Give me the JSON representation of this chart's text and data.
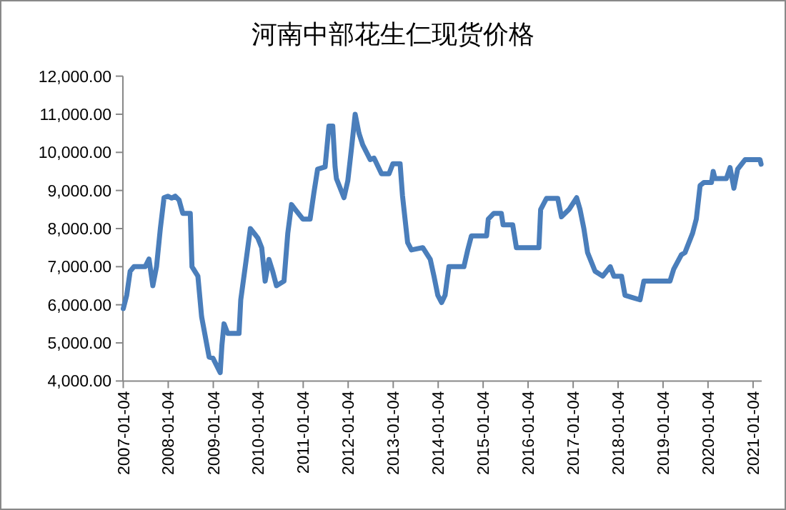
{
  "chart_data": {
    "type": "line",
    "title": "河南中部花生仁现货价格",
    "x": [
      "2007-01-04",
      "2007-02",
      "2007-03",
      "2007-04",
      "2007-07",
      "2007-08",
      "2007-09",
      "2007-10",
      "2007-11",
      "2007-12",
      "2008-01",
      "2008-02",
      "2008-03",
      "2008-04",
      "2008-05",
      "2008-07",
      "2008-07-15",
      "2008-09",
      "2008-10",
      "2008-12",
      "2009-01",
      "2009-03",
      "2009-03-15",
      "2009-04",
      "2009-05",
      "2009-08",
      "2009-08-15",
      "2009-10",
      "2009-11",
      "2009-12",
      "2010-01",
      "2010-02",
      "2010-03",
      "2010-04",
      "2010-05",
      "2010-06",
      "2010-08",
      "2010-09",
      "2010-10",
      "2010-11",
      "2011-01",
      "2011-03",
      "2011-04",
      "2011-05",
      "2011-07",
      "2011-08",
      "2011-09",
      "2011-09-20",
      "2011-10",
      "2011-12",
      "2012-01",
      "2012-02",
      "2012-03",
      "2012-04",
      "2012-05",
      "2012-07",
      "2012-08",
      "2012-10",
      "2012-12",
      "2013-01",
      "2013-03",
      "2013-03-20",
      "2013-05",
      "2013-06",
      "2013-09",
      "2013-11",
      "2013-12",
      "2014-01",
      "2014-02",
      "2014-03",
      "2014-04",
      "2014-08",
      "2014-09",
      "2014-10",
      "2015-02",
      "2015-02-15",
      "2015-04",
      "2015-06",
      "2015-06-15",
      "2015-09",
      "2015-10",
      "2016-04",
      "2016-04-15",
      "2016-06",
      "2016-09",
      "2016-10",
      "2016-12",
      "2017-02",
      "2017-03",
      "2017-04",
      "2017-05",
      "2017-07",
      "2017-09",
      "2017-11",
      "2017-12",
      "2018-02",
      "2018-03",
      "2018-05",
      "2018-07",
      "2018-08",
      "2019-03",
      "2019-04",
      "2019-06",
      "2019-07",
      "2019-09",
      "2019-10",
      "2019-11",
      "2019-12",
      "2020-02",
      "2020-02-15",
      "2020-03",
      "2020-06",
      "2020-07",
      "2020-08",
      "2020-09",
      "2020-11",
      "2021-03",
      "2021-03-10"
    ],
    "series": [
      {
        "color": "#4a7ebb",
        "values": [
          5900,
          6250,
          6880,
          7000,
          7000,
          7200,
          6500,
          7000,
          8000,
          8810,
          8850,
          8800,
          8850,
          8750,
          8400,
          8400,
          7000,
          6750,
          5690,
          4630,
          4600,
          4220,
          4940,
          5500,
          5250,
          5250,
          6130,
          7250,
          8000,
          7880,
          7750,
          7500,
          6620,
          7190,
          6880,
          6500,
          6620,
          7880,
          8630,
          8500,
          8250,
          8250,
          8940,
          9560,
          9620,
          10690,
          10690,
          9620,
          9310,
          8810,
          9250,
          10130,
          11000,
          10500,
          10200,
          9810,
          9850,
          9440,
          9440,
          9700,
          9700,
          8870,
          7630,
          7440,
          7500,
          7190,
          6750,
          6250,
          6060,
          6250,
          7000,
          7000,
          7440,
          7810,
          7810,
          8250,
          8400,
          8400,
          8100,
          8100,
          7500,
          7500,
          8500,
          8790,
          8790,
          8310,
          8500,
          8810,
          8500,
          8000,
          7370,
          6880,
          6750,
          7000,
          6750,
          6750,
          6250,
          6190,
          6130,
          6620,
          6620,
          6940,
          7310,
          7370,
          7880,
          8250,
          9130,
          9210,
          9210,
          9500,
          9310,
          9310,
          9600,
          9060,
          9560,
          9810,
          9810,
          9690
        ]
      }
    ],
    "xlim": [
      "2007-01-01",
      "2021-03-15"
    ],
    "xticks": [
      {
        "value": "2007-01-04",
        "label": "2007-01-04"
      },
      {
        "value": "2008-01-04",
        "label": "2008-01-04"
      },
      {
        "value": "2009-01-04",
        "label": "2009-01-04"
      },
      {
        "value": "2010-01-04",
        "label": "2010-01-04"
      },
      {
        "value": "2011-01-04",
        "label": "2011-01-04"
      },
      {
        "value": "2012-01-04",
        "label": "2012-01-04"
      },
      {
        "value": "2013-01-04",
        "label": "2013-01-04"
      },
      {
        "value": "2014-01-04",
        "label": "2014-01-04"
      },
      {
        "value": "2015-01-04",
        "label": "2015-01-04"
      },
      {
        "value": "2016-01-04",
        "label": "2016-01-04"
      },
      {
        "value": "2017-01-04",
        "label": "2017-01-04"
      },
      {
        "value": "2018-01-04",
        "label": "2018-01-04"
      },
      {
        "value": "2019-01-04",
        "label": "2019-01-04"
      },
      {
        "value": "2020-01-04",
        "label": "2020-01-04"
      },
      {
        "value": "2021-01-04",
        "label": "2021-01-04"
      }
    ],
    "ylim": [
      4000,
      12000
    ],
    "yticks": [
      {
        "value": 4000,
        "label": "4,000.00"
      },
      {
        "value": 5000,
        "label": "5,000.00"
      },
      {
        "value": 6000,
        "label": "6,000.00"
      },
      {
        "value": 7000,
        "label": "7,000.00"
      },
      {
        "value": 8000,
        "label": "8,000.00"
      },
      {
        "value": 9000,
        "label": "9,000.00"
      },
      {
        "value": 10000,
        "label": "10,000.00"
      },
      {
        "value": 11000,
        "label": "11,000.00"
      },
      {
        "value": 12000,
        "label": "12,000.00"
      }
    ],
    "marker": "none",
    "line_style": "solid"
  }
}
